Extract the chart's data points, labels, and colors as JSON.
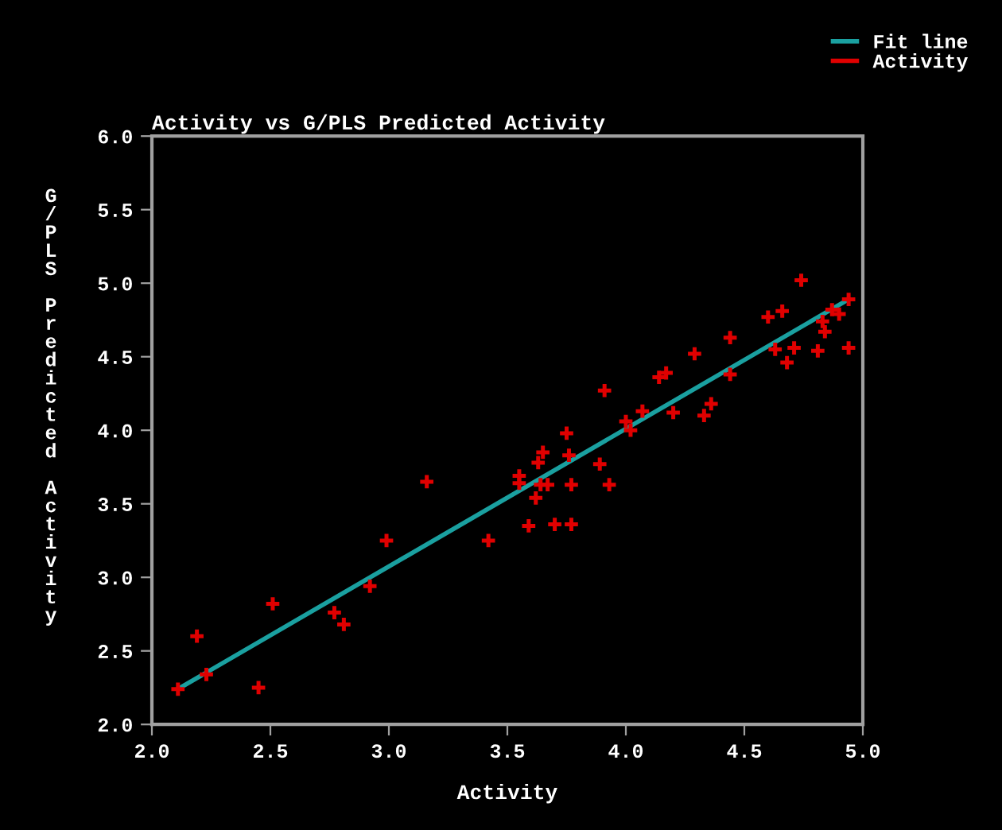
{
  "chart_data": {
    "type": "scatter",
    "title": "Activity vs G/PLS Predicted Activity",
    "xlabel": "Activity",
    "ylabel": "G/PLS Predicted Activity",
    "xlim": [
      2.0,
      5.0
    ],
    "xticks": [
      {
        "value": 2,
        "label": "2.0"
      },
      2.5,
      {
        "value": 3,
        "label": "3.0"
      },
      3.5,
      {
        "value": 4,
        "label": "4.0"
      },
      4.5,
      {
        "value": 5,
        "label": "5.0"
      }
    ],
    "ylim": [
      2.0,
      6.0
    ],
    "yticks": [
      {
        "value": 2,
        "label": "2.0"
      },
      2.5,
      {
        "value": 3,
        "label": "3.0"
      },
      3.5,
      {
        "value": 4,
        "label": "4.0"
      },
      4.5,
      {
        "value": 5,
        "label": "5.0"
      },
      5.5,
      {
        "value": 6,
        "label": "6.0"
      }
    ],
    "grid": false,
    "legend": "top right",
    "series": [
      {
        "name": "Fit line",
        "type": "line",
        "color": "#1aa0a0",
        "x": [
          2.12,
          4.94
        ],
        "values": [
          2.25,
          4.89
        ]
      },
      {
        "name": "Activity",
        "color": "#e00000",
        "marker": "cross",
        "x": [
          2.11,
          2.19,
          2.23,
          2.45,
          2.51,
          2.77,
          2.81,
          2.92,
          2.99,
          3.16,
          3.42,
          3.59,
          3.7,
          3.77,
          3.62,
          3.55,
          3.55,
          3.64,
          3.67,
          3.77,
          3.89,
          3.93,
          3.63,
          3.65,
          3.75,
          3.76,
          3.91,
          4.0,
          4.02,
          4.07,
          4.14,
          4.17,
          4.2,
          4.33,
          4.36,
          4.29,
          4.44,
          4.44,
          4.6,
          4.63,
          4.66,
          4.68,
          4.71,
          4.74,
          4.81,
          4.83,
          4.84,
          4.87,
          4.9,
          4.94,
          4.94
        ],
        "values": [
          2.24,
          2.6,
          2.34,
          2.25,
          2.82,
          2.76,
          2.68,
          2.94,
          3.25,
          3.65,
          3.25,
          3.35,
          3.36,
          3.36,
          3.54,
          3.69,
          3.64,
          3.63,
          3.63,
          3.63,
          3.77,
          3.63,
          3.78,
          3.85,
          3.98,
          3.83,
          4.27,
          4.06,
          4.0,
          4.13,
          4.36,
          4.39,
          4.12,
          4.1,
          4.18,
          4.52,
          4.63,
          4.38,
          4.77,
          4.55,
          4.81,
          4.46,
          4.56,
          5.02,
          4.54,
          4.74,
          4.67,
          4.82,
          4.79,
          4.89,
          4.56
        ]
      }
    ]
  }
}
